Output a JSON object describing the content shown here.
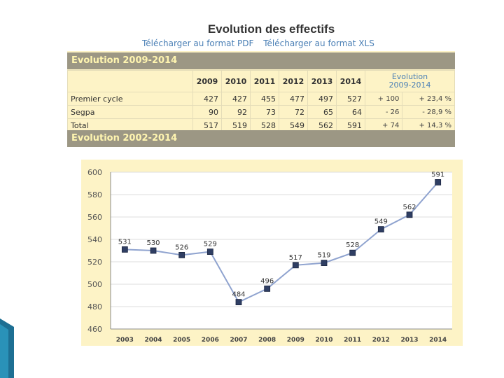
{
  "page": {
    "title": "Evolution des effectifs",
    "link_pdf": "Télécharger au format PDF",
    "link_xls": "Télécharger au format XLS",
    "band1": "Evolution 2009-2014",
    "band2": "Evolution 2002-2014"
  },
  "table": {
    "years": [
      "2009",
      "2010",
      "2011",
      "2012",
      "2013",
      "2014"
    ],
    "evol_header_line1": "Evolution",
    "evol_header_line2": "2009-2014",
    "rows": [
      {
        "label": "Premier cycle",
        "values": [
          "427",
          "427",
          "455",
          "477",
          "497",
          "527"
        ],
        "delta": "+ 100",
        "pct": "+ 23,4 %"
      },
      {
        "label": "Segpa",
        "values": [
          "90",
          "92",
          "73",
          "72",
          "65",
          "64"
        ],
        "delta": "- 26",
        "pct": "- 28,9 %"
      },
      {
        "label": "Total",
        "values": [
          "517",
          "519",
          "528",
          "549",
          "562",
          "591"
        ],
        "delta": "+ 74",
        "pct": "+ 14,3 %"
      }
    ]
  },
  "chart_data": {
    "type": "line",
    "title": "",
    "xlabel": "",
    "ylabel": "",
    "categories": [
      "2003",
      "2004",
      "2005",
      "2006",
      "2007",
      "2008",
      "2009",
      "2010",
      "2011",
      "2012",
      "2013",
      "2014"
    ],
    "series": [
      {
        "name": "Total",
        "values": [
          531,
          530,
          526,
          529,
          484,
          496,
          517,
          519,
          528,
          549,
          562,
          591
        ]
      }
    ],
    "ylim": [
      460,
      600
    ],
    "yticks": [
      "460",
      "480",
      "500",
      "520",
      "540",
      "560",
      "580",
      "600"
    ],
    "data_labels": [
      "531",
      "530",
      "526",
      "529",
      "484",
      "496",
      "517",
      "519",
      "528",
      "549",
      "562",
      "591"
    ],
    "grid": "horizontal",
    "line_color": "#8fa3cf",
    "marker_color": "#2f3e63",
    "axis_color": "#8c8c8c",
    "grid_color": "#dcdcdc"
  },
  "colors": {
    "panel_bg": "#fdf3c6",
    "band_bg": "#9c9784",
    "band_text": "#fff5b0",
    "link": "#4a7fb5"
  }
}
